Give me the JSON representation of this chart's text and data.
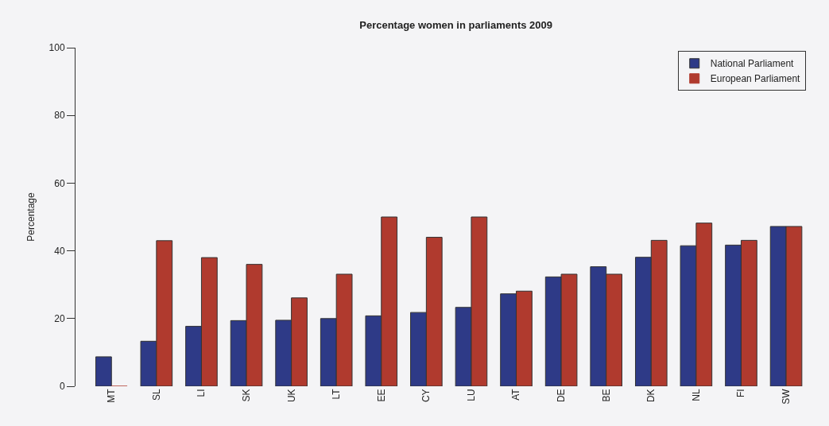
{
  "chart_data": {
    "type": "bar",
    "title": "Percentage women in parliaments 2009",
    "ylabel": "Percentage",
    "categories": [
      "MT",
      "SL",
      "LI",
      "SK",
      "UK",
      "LT",
      "EE",
      "CY",
      "LU",
      "AT",
      "DE",
      "BE",
      "DK",
      "NL",
      "FI",
      "SW"
    ],
    "series": [
      {
        "name": "National Parliament",
        "color": "#2e3a87",
        "values": [
          8.7,
          13.3,
          17.7,
          19.4,
          19.5,
          20.0,
          20.8,
          21.8,
          23.3,
          27.3,
          32.3,
          35.3,
          38.1,
          41.5,
          41.7,
          47.2
        ]
      },
      {
        "name": "European Parliament",
        "color": "#b03a2e",
        "values": [
          0,
          43.0,
          38.0,
          36.0,
          26.1,
          33.1,
          50.0,
          44.0,
          50.0,
          28.1,
          33.1,
          33.1,
          43.1,
          48.2,
          43.1,
          47.2
        ]
      }
    ],
    "ylim": [
      0,
      100
    ],
    "yticks": [
      0,
      20,
      40,
      60,
      80,
      100
    ],
    "grid": false,
    "legend": "top right"
  }
}
